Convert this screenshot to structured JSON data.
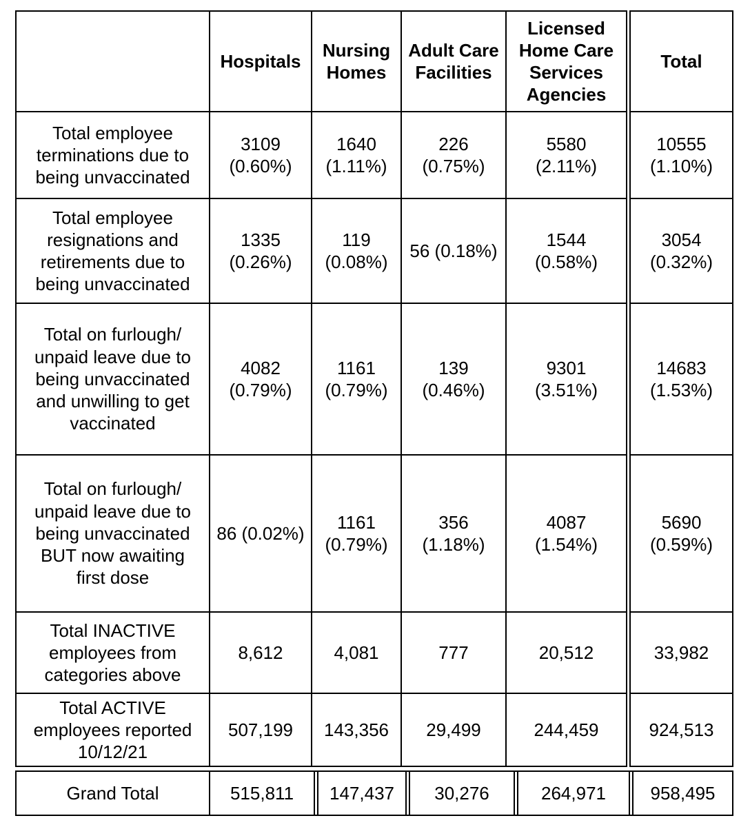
{
  "colors": {
    "background": "#ffffff",
    "border": "#000000",
    "text": "#000000"
  },
  "table": {
    "columns": [
      "",
      "Hospitals",
      "Nursing\nHomes",
      "Adult Care\nFacilities",
      "Licensed\nHome Care\nServices\nAgencies",
      "Total"
    ],
    "rows": [
      {
        "label": "Total employee\nterminations due to\nbeing unvaccinated",
        "values": [
          "3109\n(0.60%)",
          "1640\n(1.11%)",
          "226\n(0.75%)",
          "5580\n(2.11%)",
          "10555\n(1.10%)"
        ]
      },
      {
        "label": "Total employee\nresignations and\nretirements due to\nbeing unvaccinated",
        "values": [
          "1335\n(0.26%)",
          "119\n(0.08%)",
          "56 (0.18%)",
          "1544\n(0.58%)",
          "3054\n(0.32%)"
        ]
      },
      {
        "label": "Total on furlough/\nunpaid leave due to\nbeing unvaccinated\nand unwilling to get\nvaccinated",
        "values": [
          "4082\n(0.79%)",
          "1161\n(0.79%)",
          "139\n(0.46%)",
          "9301\n(3.51%)",
          "14683\n(1.53%)"
        ]
      },
      {
        "label": "Total on furlough/\nunpaid leave due to\nbeing unvaccinated\nBUT now awaiting\nfirst dose",
        "values": [
          "86 (0.02%)",
          "1161\n(0.79%)",
          "356\n(1.18%)",
          "4087\n(1.54%)",
          "5690\n(0.59%)"
        ]
      },
      {
        "label": "Total INACTIVE\nemployees from\ncategories above",
        "values": [
          "8,612",
          "4,081",
          "777",
          "20,512",
          "33,982"
        ]
      },
      {
        "label": "Total ACTIVE\nemployees reported\n10/12/21",
        "values": [
          "507,199",
          "143,356",
          "29,499",
          "244,459",
          "924,513"
        ]
      }
    ],
    "grand_total": {
      "label": "Grand Total",
      "values": [
        "515,811",
        "147,437",
        "30,276",
        "264,971",
        "958,495"
      ]
    }
  },
  "chart_data": {
    "type": "table",
    "categories": [
      "Hospitals",
      "Nursing Homes",
      "Adult Care Facilities",
      "Licensed Home Care Services Agencies",
      "Total"
    ],
    "series": [
      {
        "name": "Total employee terminations due to being unvaccinated",
        "values": [
          3109,
          1640,
          226,
          5580,
          10555
        ],
        "percents": [
          "0.60%",
          "1.11%",
          "0.75%",
          "2.11%",
          "1.10%"
        ]
      },
      {
        "name": "Total employee resignations and retirements due to being unvaccinated",
        "values": [
          1335,
          119,
          56,
          1544,
          3054
        ],
        "percents": [
          "0.26%",
          "0.08%",
          "0.18%",
          "0.58%",
          "0.32%"
        ]
      },
      {
        "name": "Total on furlough/unpaid leave due to being unvaccinated and unwilling to get vaccinated",
        "values": [
          4082,
          1161,
          139,
          9301,
          14683
        ],
        "percents": [
          "0.79%",
          "0.79%",
          "0.46%",
          "3.51%",
          "1.53%"
        ]
      },
      {
        "name": "Total on furlough/unpaid leave due to being unvaccinated BUT now awaiting first dose",
        "values": [
          86,
          1161,
          356,
          4087,
          5690
        ],
        "percents": [
          "0.02%",
          "0.79%",
          "1.18%",
          "1.54%",
          "0.59%"
        ]
      },
      {
        "name": "Total INACTIVE employees from categories above",
        "values": [
          8612,
          4081,
          777,
          20512,
          33982
        ]
      },
      {
        "name": "Total ACTIVE employees reported 10/12/21",
        "values": [
          507199,
          143356,
          29499,
          244459,
          924513
        ]
      },
      {
        "name": "Grand Total",
        "values": [
          515811,
          147437,
          30276,
          264971,
          958495
        ]
      }
    ]
  }
}
